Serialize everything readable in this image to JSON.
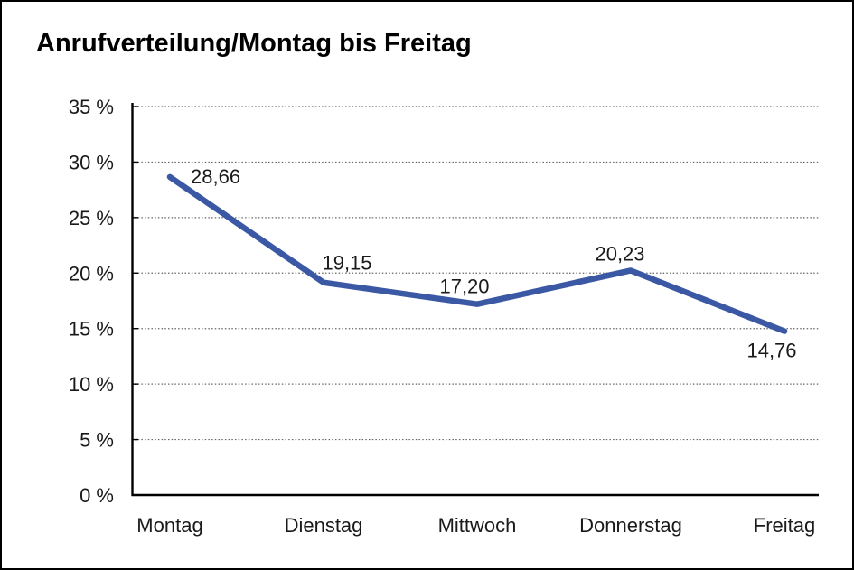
{
  "window": {
    "background_color": "#FFFFFF",
    "border_color": "#000000"
  },
  "chart_data": {
    "type": "line",
    "title": "Anrufverteilung/Montag bis Freitag",
    "categories": [
      "Montag",
      "Dienstag",
      "Mittwoch",
      "Donnerstag",
      "Freitag"
    ],
    "series": [
      {
        "name": "Anrufverteilung",
        "values": [
          28.66,
          19.15,
          17.2,
          20.23,
          14.76
        ]
      }
    ],
    "value_labels": [
      "28,66",
      "19,15",
      "17,20",
      "20,23",
      "14,76"
    ],
    "xlabel": "",
    "ylabel": "",
    "ylim": [
      0,
      35
    ],
    "ytick_step": 5,
    "ytick_labels": [
      "0 %",
      "5 %",
      "10 %",
      "15 %",
      "20 %",
      "25 %",
      "30 %",
      "35 %"
    ],
    "grid": "horizontal-dotted",
    "legend": "none",
    "line_color": "#3A58A3",
    "axis_color": "#000000",
    "label_offsets": [
      [
        23,
        7,
        "start"
      ],
      [
        26,
        -14,
        "middle"
      ],
      [
        -14,
        -12,
        "middle"
      ],
      [
        -12,
        -11,
        "middle"
      ],
      [
        -14,
        29,
        "middle"
      ]
    ]
  }
}
